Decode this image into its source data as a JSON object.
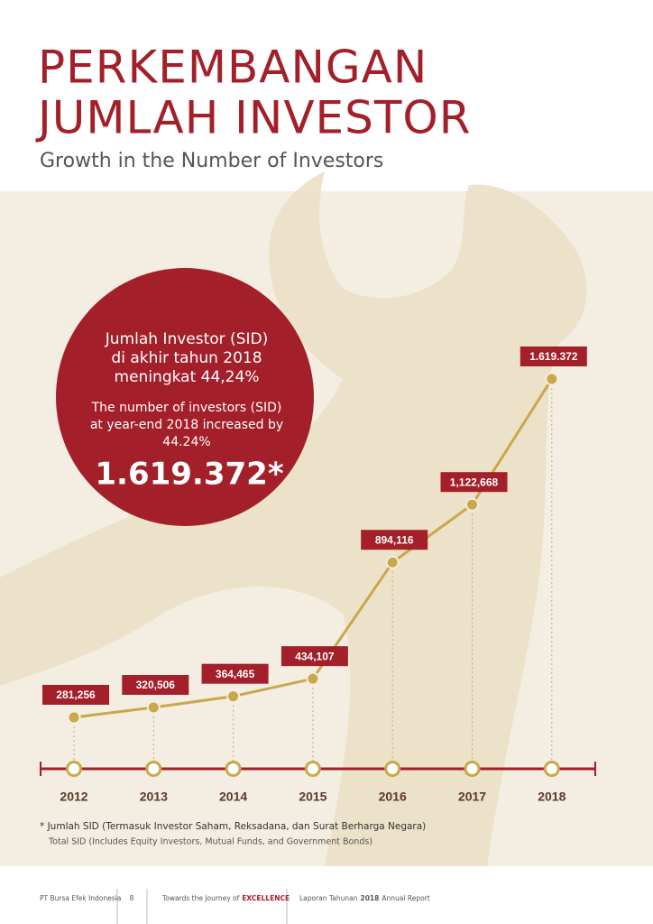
{
  "header": {
    "title": [
      "PERKEMBANGAN",
      "JUMLAH INVESTOR"
    ],
    "subtitle": "Growth in the Number of Investors"
  },
  "highlight": {
    "lines_id": [
      "Jumlah Investor (SID)",
      "di akhir tahun 2018",
      "meningkat 44,24%"
    ],
    "lines_en": [
      "The number of investors (SID)",
      "at year-end 2018 increased by",
      "44.24%"
    ],
    "figure": "1.619.372*"
  },
  "chart_data": {
    "type": "line",
    "categories": [
      "2012",
      "2013",
      "2014",
      "2015",
      "2016",
      "2017",
      "2018"
    ],
    "values": [
      281256,
      320506,
      364465,
      434107,
      894116,
      1122668,
      1619372
    ],
    "value_labels": [
      "281,256",
      "320,506",
      "364,465",
      "434,107",
      "894,116",
      "1,122,668",
      "1.619.372"
    ],
    "color": "#c9a84a",
    "label_color": "#a31f2a"
  },
  "footnote": [
    "* Jumlah SID (Termasuk Investor Saham, Reksadana, dan Surat Berharga Negara)",
    "Total SID (Includes Equity Investors, Mutual Funds, and Government Bonds)"
  ],
  "footer": {
    "company": "PT Bursa Efek Indonesia",
    "page": "8",
    "tagline": [
      "Towards the Journey of",
      "EXCELLENCE"
    ],
    "report": [
      "Laporan Tahunan",
      "2018",
      "Annual Report"
    ]
  }
}
